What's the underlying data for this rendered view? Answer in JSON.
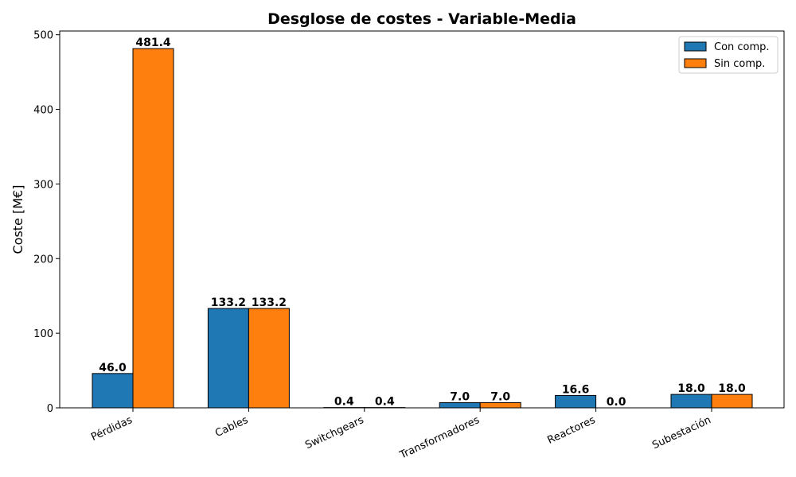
{
  "chart_data": {
    "type": "bar",
    "title": "Desglose de costes - Variable-Media",
    "xlabel": "",
    "ylabel": "Coste [M€]",
    "ylim": [
      0,
      505
    ],
    "yticks": [
      0,
      100,
      200,
      300,
      400,
      500
    ],
    "categories": [
      "Pérdidas",
      "Cables",
      "Switchgears",
      "Transformadores",
      "Reactores",
      "Subestación"
    ],
    "series": [
      {
        "name": "Con comp.",
        "color": "#1f77b4",
        "values": [
          46.0,
          133.2,
          0.4,
          7.0,
          16.6,
          18.0
        ],
        "labels": [
          "46.0",
          "133.2",
          "0.4",
          "7.0",
          "16.6",
          "18.0"
        ]
      },
      {
        "name": "Sin comp.",
        "color": "#ff7f0e",
        "values": [
          481.4,
          133.2,
          0.4,
          7.0,
          0.0,
          18.0
        ],
        "labels": [
          "481.4",
          "133.2",
          "0.4",
          "7.0",
          "0.0",
          "18.0"
        ]
      }
    ],
    "grid": false,
    "legend_position": "top-right"
  }
}
